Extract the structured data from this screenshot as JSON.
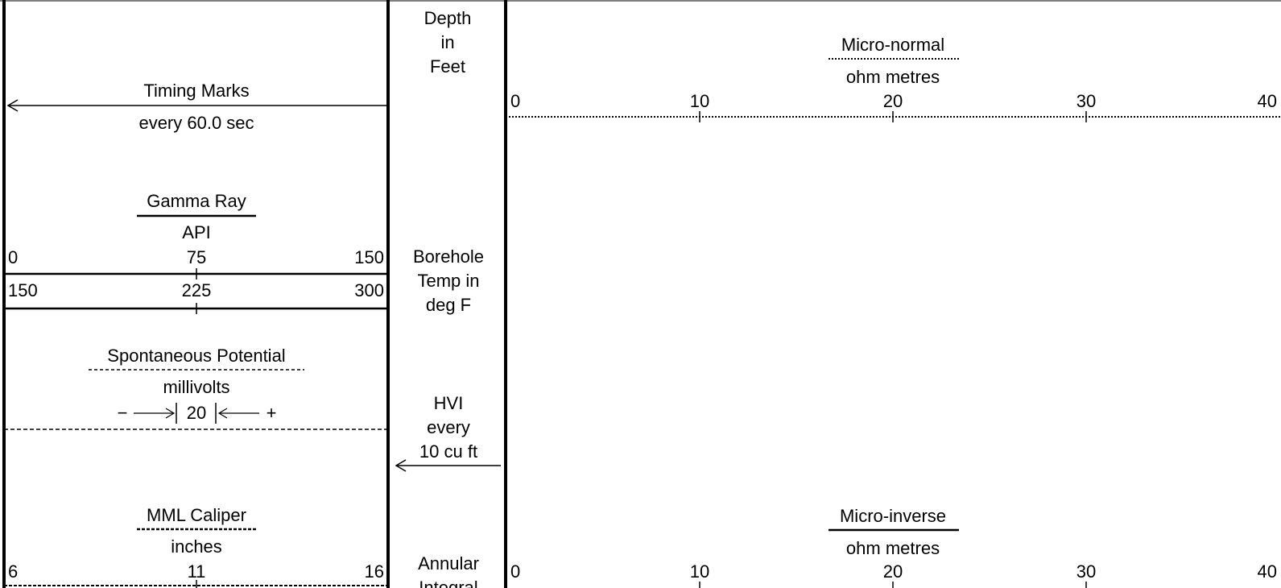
{
  "timing": {
    "title": "Timing Marks",
    "subtitle": "every 60.0 sec"
  },
  "gamma_ray": {
    "title": "Gamma Ray",
    "unit": "API",
    "scale1": [
      "0",
      "75",
      "150"
    ],
    "scale2": [
      "150",
      "225",
      "300"
    ]
  },
  "sp": {
    "title": "Spontaneous Potential",
    "unit": "millivolts",
    "minus": "−",
    "value": "20",
    "plus": "+"
  },
  "caliper": {
    "title": "MML Caliper",
    "unit": "inches",
    "scale": [
      "6",
      "11",
      "16"
    ]
  },
  "depth": {
    "lines": [
      "Depth",
      "in",
      "Feet"
    ]
  },
  "borehole_temp": {
    "lines": [
      "Borehole",
      "Temp in",
      "deg F"
    ]
  },
  "hvi": {
    "lines": [
      "HVI",
      "every",
      "10 cu ft"
    ]
  },
  "annular": {
    "lines": [
      "Annular",
      "Integral"
    ]
  },
  "micro_normal": {
    "title": "Micro-normal",
    "unit": "ohm metres",
    "scale": [
      "0",
      "10",
      "20",
      "30",
      "40"
    ]
  },
  "micro_inverse": {
    "title": "Micro-inverse",
    "unit": "ohm metres",
    "scale": [
      "0",
      "10",
      "20",
      "30",
      "40"
    ]
  }
}
